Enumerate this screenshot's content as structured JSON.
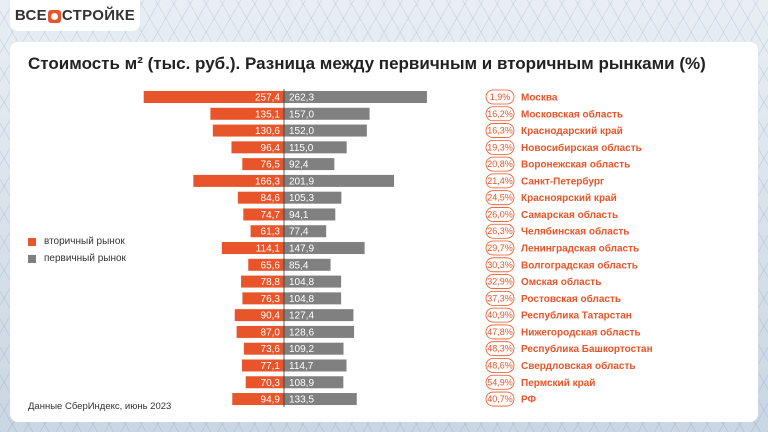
{
  "logo": "ВСЕ О СТРОЙКЕ",
  "title": "Стоимость м² (тыс. руб.). Разница между первичным и вторичным рынками (%)",
  "footer": "Данные СберИндекс, июнь 2023",
  "colors": {
    "secondary": "#e8552a",
    "primary": "#808080"
  },
  "chart_data": {
    "type": "bar",
    "orientation": "horizontal-diverging",
    "legend": [
      {
        "name": "вторичный рынок",
        "color": "#e8552a"
      },
      {
        "name": "первичный рынок",
        "color": "#808080"
      }
    ],
    "legend_position": "left",
    "categories": [
      "Москва",
      "Московская область",
      "Краснодарский край",
      "Новосибирская область",
      "Воронежская область",
      "Санкт-Петербург",
      "Красноярский край",
      "Самарская область",
      "Челябинская область",
      "Ленинградская область",
      "Волгоградская область",
      "Омская область",
      "Ростовская область",
      "Республика Татарстан",
      "Нижегородская область",
      "Республика Башкортостан",
      "Свердловская область",
      "Пермский край",
      "РФ"
    ],
    "series": [
      {
        "name": "вторичный рынок",
        "values": [
          "257,4",
          "135,1",
          "130,6",
          "96,4",
          "76,5",
          "166,3",
          "84,6",
          "74,7",
          "61,3",
          "114,1",
          "65,6",
          "78,8",
          "76,3",
          "90,4",
          "87,0",
          "73,6",
          "77,1",
          "70,3",
          "94,9"
        ]
      },
      {
        "name": "первичный рынок",
        "values": [
          "262,3",
          "157,0",
          "152,0",
          "115,0",
          "92,4",
          "201,9",
          "105,3",
          "94,1",
          "77,4",
          "147,9",
          "85,4",
          "104,8",
          "104,8",
          "127,4",
          "128,6",
          "109,2",
          "114,7",
          "108,9",
          "133,5"
        ]
      }
    ],
    "difference": [
      "1,9%",
      "16,2%",
      "16,3%",
      "19,3%",
      "20,8%",
      "21,4%",
      "24,5%",
      "26,0%",
      "26,3%",
      "29,7%",
      "30,3%",
      "32,9%",
      "37,3%",
      "40,9%",
      "47,8%",
      "48,3%",
      "48,6%",
      "54,9%",
      "40,7%"
    ]
  }
}
